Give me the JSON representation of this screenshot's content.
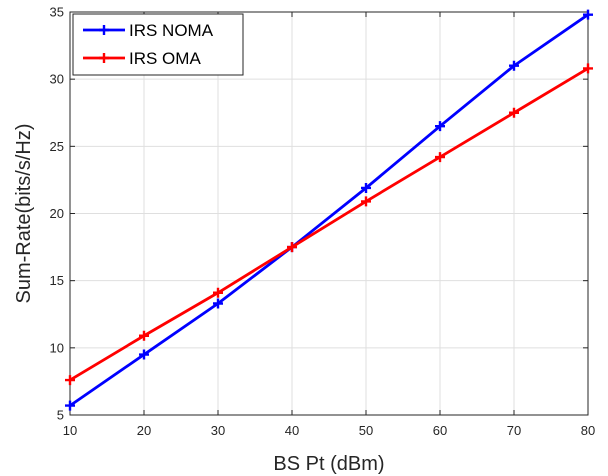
{
  "chart_data": {
    "type": "line",
    "title": "",
    "xlabel": "BS Pt (dBm)",
    "ylabel": "Sum-Rate(bits/s/Hz)",
    "xlim": [
      10,
      80
    ],
    "ylim": [
      5,
      35
    ],
    "x": [
      10,
      20,
      30,
      40,
      50,
      60,
      70,
      80
    ],
    "xticks": [
      10,
      20,
      30,
      40,
      50,
      60,
      70,
      80
    ],
    "yticks": [
      5,
      10,
      15,
      20,
      25,
      30,
      35
    ],
    "grid": true,
    "legend_position": "top-left",
    "marker": "plus",
    "series": [
      {
        "name": "IRS NOMA",
        "color": "#0000ff",
        "values": [
          5.7,
          9.5,
          13.3,
          17.5,
          21.9,
          26.5,
          31.0,
          34.8
        ]
      },
      {
        "name": "IRS OMA",
        "color": "#ff0000",
        "values": [
          7.6,
          10.9,
          14.1,
          17.5,
          20.9,
          24.2,
          27.5,
          30.8
        ]
      }
    ]
  }
}
